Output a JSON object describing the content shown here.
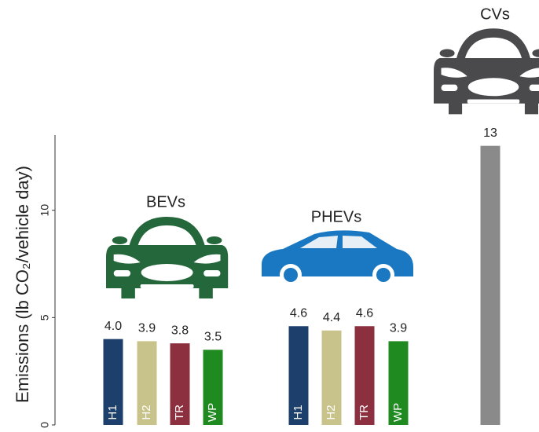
{
  "chart_data": {
    "type": "bar",
    "y_label": "Emissions (lb CO₂/vehicle day)",
    "ylim": [
      0,
      13.5
    ],
    "yticks": [
      0,
      5,
      10
    ],
    "groups": [
      {
        "name": "BEVs",
        "categories": [
          "H1",
          "H2",
          "TR",
          "WP"
        ],
        "values": [
          4,
          3.9,
          3.8,
          3.5
        ],
        "value_labels": [
          "4.0",
          "3.9",
          "3.8",
          "3.5"
        ],
        "colors": [
          "#1c3f6c",
          "#c8c38a",
          "#8c2f3f",
          "#1f8a1f"
        ]
      },
      {
        "name": "PHEVs",
        "categories": [
          "H1",
          "H2",
          "TR",
          "WP"
        ],
        "values": [
          4.6,
          4.4,
          4.6,
          3.9
        ],
        "value_labels": [
          "4.6",
          "4.4",
          "4.6",
          "3.9"
        ],
        "colors": [
          "#1c3f6c",
          "#c8c38a",
          "#8c2f3f",
          "#1f8a1f"
        ]
      },
      {
        "name": "CVs",
        "categories": [
          null
        ],
        "values": [
          13
        ],
        "colors": [
          "#8a8a8a"
        ]
      }
    ]
  }
}
